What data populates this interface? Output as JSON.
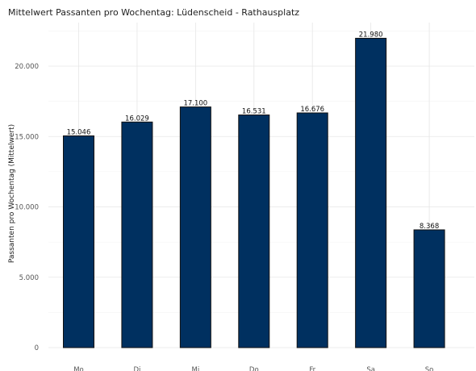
{
  "chart_data": {
    "type": "bar",
    "title": "Mittelwert Passanten pro Wochentag: Lüdenscheid - Rathausplatz",
    "xlabel": "",
    "ylabel": "Passanten pro Wochentag (Mittelwert)",
    "categories": [
      "Mo",
      "Di",
      "Mi",
      "Do",
      "Fr",
      "Sa",
      "So"
    ],
    "values": [
      15046,
      16029,
      17100,
      16531,
      16676,
      21980,
      8368
    ],
    "value_labels": [
      "15.046",
      "16.029",
      "17.100",
      "16.531",
      "16.676",
      "21.980",
      "8.368"
    ],
    "yticks": [
      0,
      5000,
      10000,
      15000,
      20000
    ],
    "ytick_labels": [
      "0",
      "5.000",
      "10.000",
      "15.000",
      "20.000"
    ],
    "ylim": [
      0,
      23000
    ],
    "grid": true,
    "colors": {
      "bar": "#003060",
      "bar_outline": "#111111",
      "grid": "#e6e6e6"
    }
  }
}
